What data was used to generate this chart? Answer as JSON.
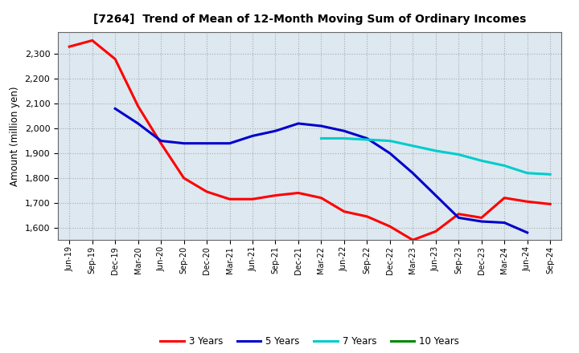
{
  "title": "[7264]  Trend of Mean of 12-Month Moving Sum of Ordinary Incomes",
  "ylabel": "Amount (million yen)",
  "background_color": "#ffffff",
  "plot_bg_color": "#dde8f0",
  "grid_color": "#aaaaaa",
  "x_labels": [
    "Jun-19",
    "Sep-19",
    "Dec-19",
    "Mar-20",
    "Jun-20",
    "Sep-20",
    "Dec-20",
    "Mar-21",
    "Jun-21",
    "Sep-21",
    "Dec-21",
    "Mar-22",
    "Jun-22",
    "Sep-22",
    "Dec-22",
    "Mar-23",
    "Jun-23",
    "Sep-23",
    "Dec-23",
    "Mar-24",
    "Jun-24",
    "Sep-24"
  ],
  "ylim": [
    1550,
    2390
  ],
  "yticks": [
    1600,
    1700,
    1800,
    1900,
    2000,
    2100,
    2200,
    2300
  ],
  "series": {
    "3 Years": {
      "color": "#ff0000",
      "data_x": [
        0,
        1,
        2,
        3,
        4,
        5,
        6,
        7,
        8,
        9,
        10,
        11,
        12,
        13,
        14,
        15,
        16,
        17,
        18,
        19,
        20,
        21
      ],
      "data_y": [
        2330,
        2355,
        2280,
        2090,
        1940,
        1800,
        1745,
        1715,
        1715,
        1730,
        1740,
        1720,
        1665,
        1645,
        1605,
        1550,
        1585,
        1655,
        1640,
        1720,
        1705,
        1695
      ]
    },
    "5 Years": {
      "color": "#0000cc",
      "data_x": [
        2,
        3,
        4,
        5,
        6,
        7,
        8,
        9,
        10,
        11,
        12,
        13,
        14,
        15,
        16,
        17,
        18,
        19,
        20
      ],
      "data_y": [
        2080,
        2020,
        1950,
        1940,
        1940,
        1940,
        1970,
        1990,
        2020,
        2010,
        1990,
        1960,
        1900,
        1820,
        1730,
        1640,
        1625,
        1620,
        1580
      ]
    },
    "7 Years": {
      "color": "#00cccc",
      "data_x": [
        11,
        12,
        13,
        14,
        15,
        16,
        17,
        18,
        19,
        20,
        21
      ],
      "data_y": [
        1960,
        1960,
        1955,
        1950,
        1930,
        1910,
        1895,
        1870,
        1850,
        1820,
        1815
      ]
    },
    "10 Years": {
      "color": "#008800",
      "data_x": [],
      "data_y": []
    }
  },
  "legend_labels": [
    "3 Years",
    "5 Years",
    "7 Years",
    "10 Years"
  ],
  "legend_colors": [
    "#ff0000",
    "#0000cc",
    "#00cccc",
    "#008800"
  ]
}
